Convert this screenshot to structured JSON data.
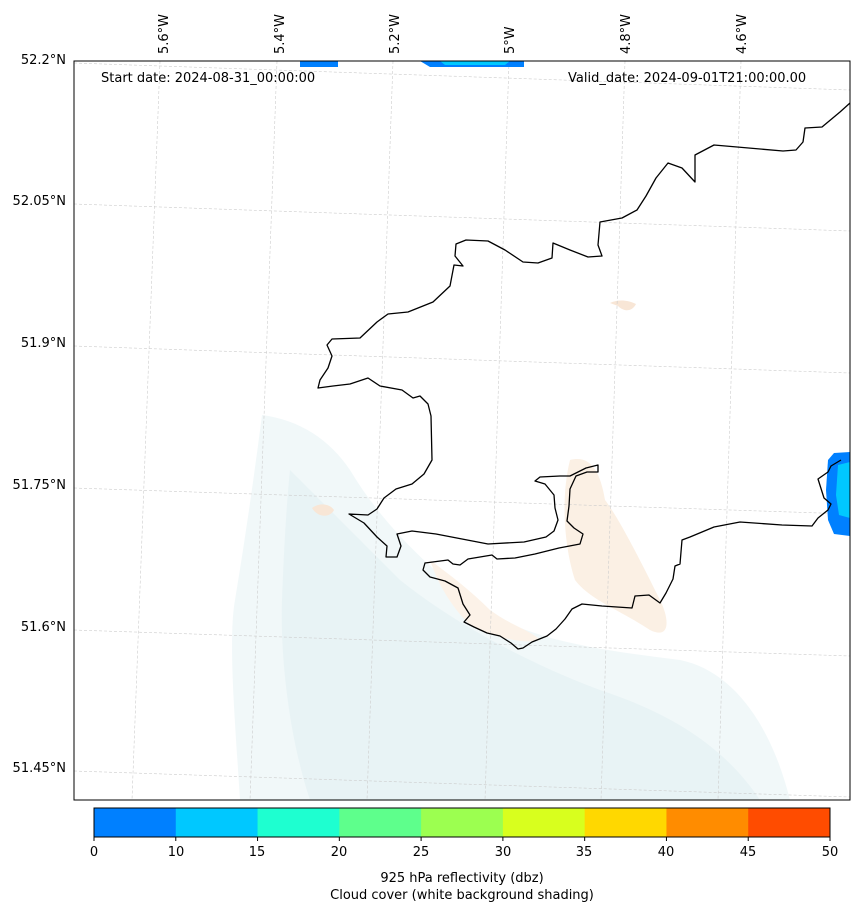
{
  "header": {
    "start_date": "Start date: 2024-08-31_00:00:00",
    "valid_date": "Valid_date: 2024-09-01T21:00:00.00"
  },
  "axes": {
    "lat_labels": [
      "52.2°N",
      "52.05°N",
      "51.9°N",
      "51.75°N",
      "51.6°N",
      "51.45°N"
    ],
    "lon_labels": [
      "5.6°W",
      "5.4°W",
      "5.2°W",
      "5°W",
      "4.8°W",
      "4.6°W"
    ],
    "gridlines": true
  },
  "colorbar": {
    "ticks": [
      "0",
      "10",
      "15",
      "20",
      "25",
      "30",
      "35",
      "40",
      "45",
      "50"
    ],
    "colors": [
      "#0080ff",
      "#00c8ff",
      "#1effd0",
      "#5eff8c",
      "#9cff50",
      "#d8ff1e",
      "#ffd800",
      "#ff8c00",
      "#ff4c00"
    ],
    "label_line1": "925 hPa reflectivity (dbz)",
    "label_line2": "Cloud cover (white background shading)"
  },
  "colors": {
    "coastline": "#000000",
    "cloud_shading": "#e8f3f6",
    "low_reflectivity": "#fbefe3"
  }
}
